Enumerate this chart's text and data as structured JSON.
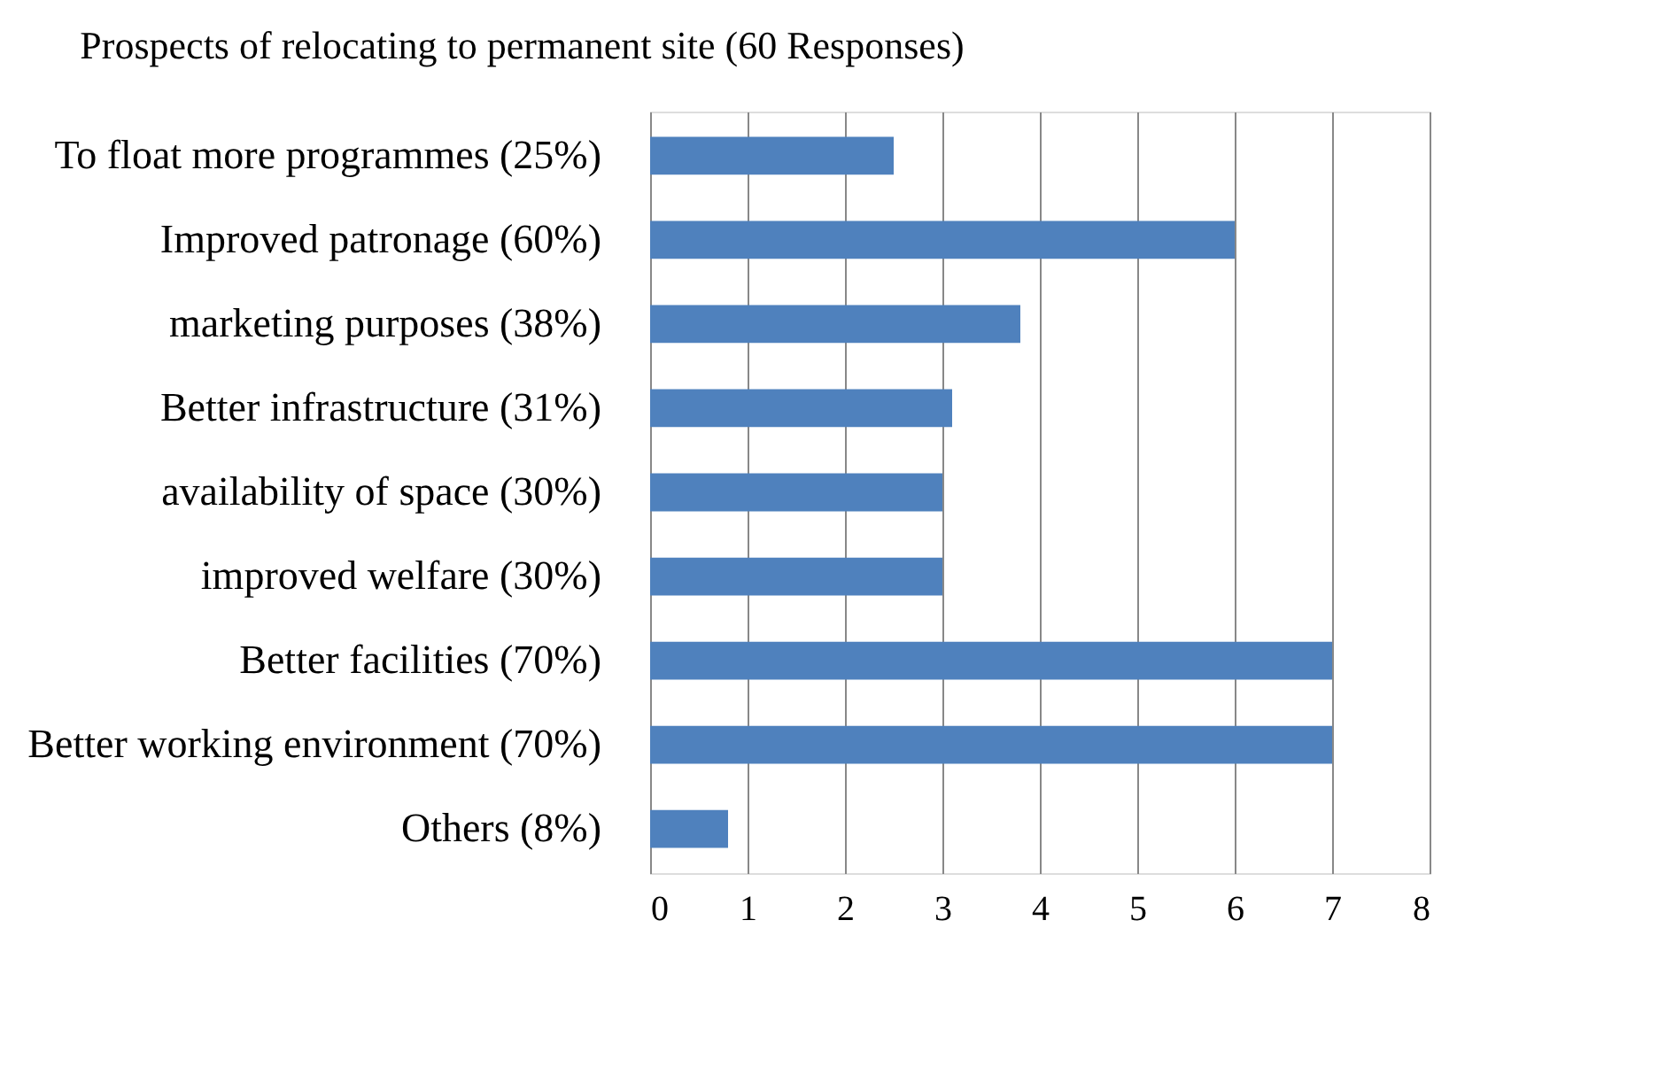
{
  "chart_data": {
    "type": "bar",
    "orientation": "horizontal",
    "title": "Prospects of relocating to permanent site (60 Responses)",
    "categories": [
      "To float more programmes (25%)",
      "Improved patronage (60%)",
      "marketing purposes (38%)",
      "Better infrastructure (31%)",
      "availability of space (30%)",
      "improved welfare (30%)",
      "Better facilities (70%)",
      "Better working environment (70%)",
      "Others (8%)"
    ],
    "values": [
      2.5,
      6,
      3.8,
      3.1,
      3,
      3,
      7,
      7,
      0.8
    ],
    "color": "#4f81bd",
    "xlim": [
      0,
      8
    ],
    "xticks": [
      0,
      1,
      2,
      3,
      4,
      5,
      6,
      7,
      8
    ],
    "grid": "x"
  }
}
